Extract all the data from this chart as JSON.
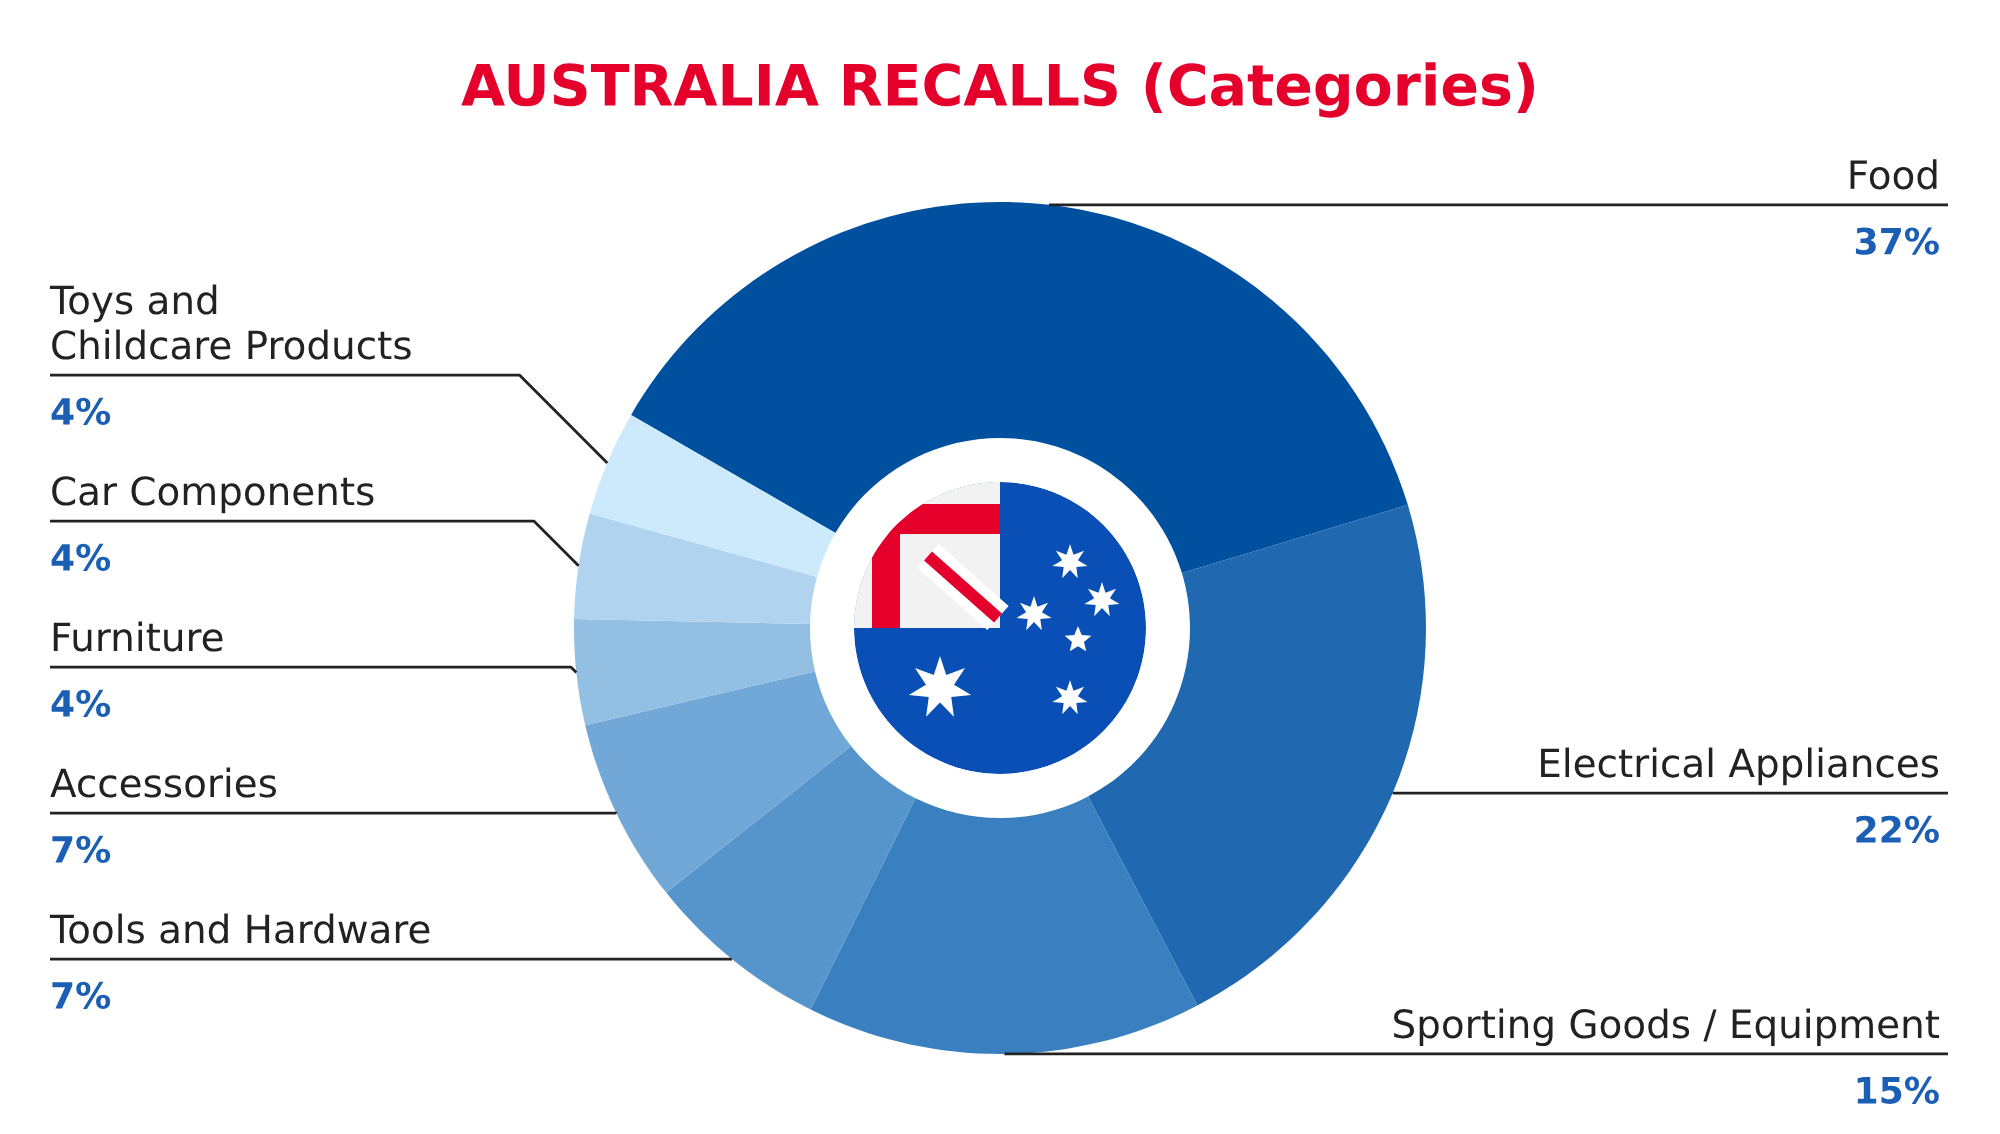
{
  "chart_data": {
    "type": "donut",
    "title": "AUSTRALIA RECALLS (Categories)",
    "categories": [
      "Food",
      "Electrical Appliances",
      "Sporting Goods / Equipment",
      "Tools and Hardware",
      "Accessories",
      "Furniture",
      "Car Components",
      "Toys and\nChildcare Products"
    ],
    "values": [
      37,
      22,
      15,
      7,
      7,
      4,
      4,
      4
    ],
    "colors": [
      "#0050a0",
      "#2068b0",
      "#3a80c0",
      "#5595cc",
      "#72a8d8",
      "#92bfe2",
      "#b0d4ef",
      "#cceafb"
    ],
    "value_labels": [
      "37%",
      "22%",
      "15%",
      "7%",
      "7%",
      "4%",
      "4%",
      "4%"
    ]
  }
}
